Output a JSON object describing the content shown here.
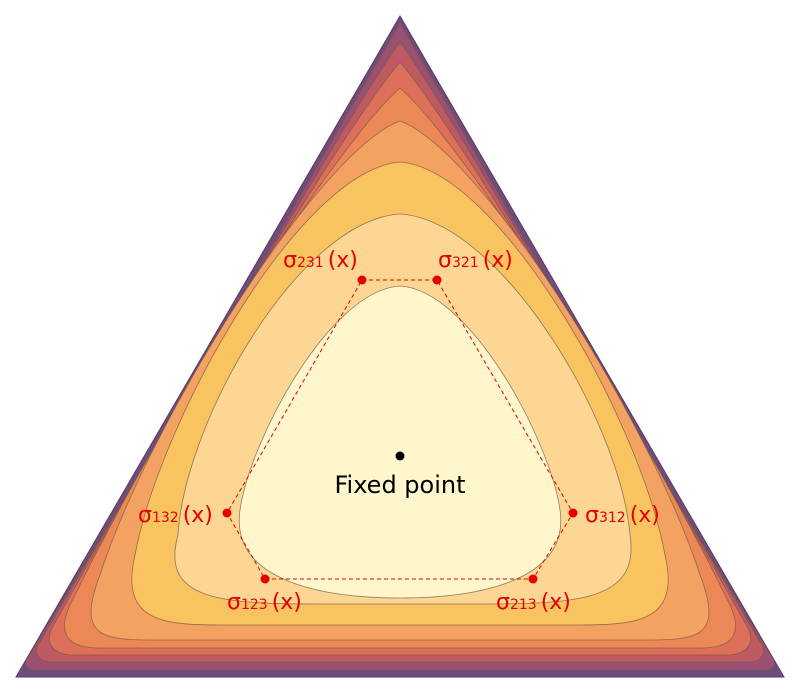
{
  "colors": {
    "levels": [
      "#704c7a",
      "#9a4f73",
      "#bf5a62",
      "#de6f58",
      "#ec8756",
      "#f3a262",
      "#f9c360",
      "#fdd693",
      "#fff6cc"
    ],
    "outline": "#5b3a5e",
    "contour_stroke": "#6e5a4a",
    "points": "#e40000",
    "dashes": "#e40000",
    "labels": "#e40000",
    "fixed_point": "#000000"
  },
  "labels": [
    {
      "id": "s231",
      "name": "σ",
      "sub": "231",
      "tail": "(x)"
    },
    {
      "id": "s321",
      "name": "σ",
      "sub": "321",
      "tail": "(x)"
    },
    {
      "id": "s132",
      "name": "σ",
      "sub": "132",
      "tail": "(x)"
    },
    {
      "id": "s312",
      "name": "σ",
      "sub": "312",
      "tail": "(x)"
    },
    {
      "id": "s123",
      "name": "σ",
      "sub": "123",
      "tail": "(x)"
    },
    {
      "id": "s213",
      "name": "σ",
      "sub": "213",
      "tail": "(x)"
    }
  ],
  "center_label": "Fixed point"
}
